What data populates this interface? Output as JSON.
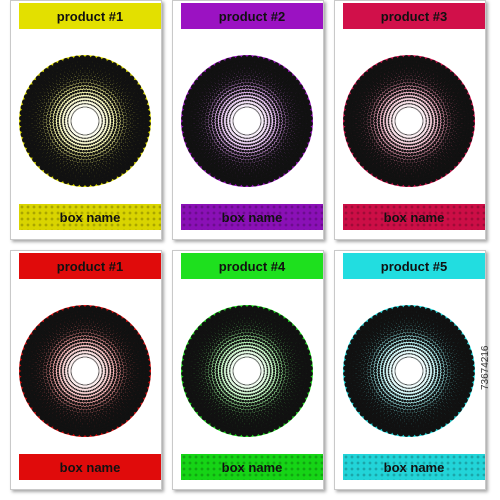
{
  "watermark_id": "73674216",
  "cards": [
    {
      "header_label": "product #1",
      "footer_label": "box name",
      "color": "#e3e000",
      "footer_color": "#d9d400",
      "footer_dotted": true
    },
    {
      "header_label": "product #2",
      "footer_label": "box name",
      "color": "#9b12c2",
      "footer_color": "#8a10b6",
      "footer_dotted": true
    },
    {
      "header_label": "product #3",
      "footer_label": "box name",
      "color": "#d1104a",
      "footer_color": "#cc0e46",
      "footer_dotted": true
    },
    {
      "header_label": "product #1",
      "footer_label": "box name",
      "color": "#e00b0b",
      "footer_color": "#e00b0b",
      "footer_dotted": false
    },
    {
      "header_label": "product #4",
      "footer_label": "box name",
      "color": "#1ee01e",
      "footer_color": "#16d416",
      "footer_dotted": true
    },
    {
      "header_label": "product #5",
      "footer_label": "box name",
      "color": "#22dde0",
      "footer_color": "#22d4d8",
      "footer_dotted": true
    }
  ]
}
